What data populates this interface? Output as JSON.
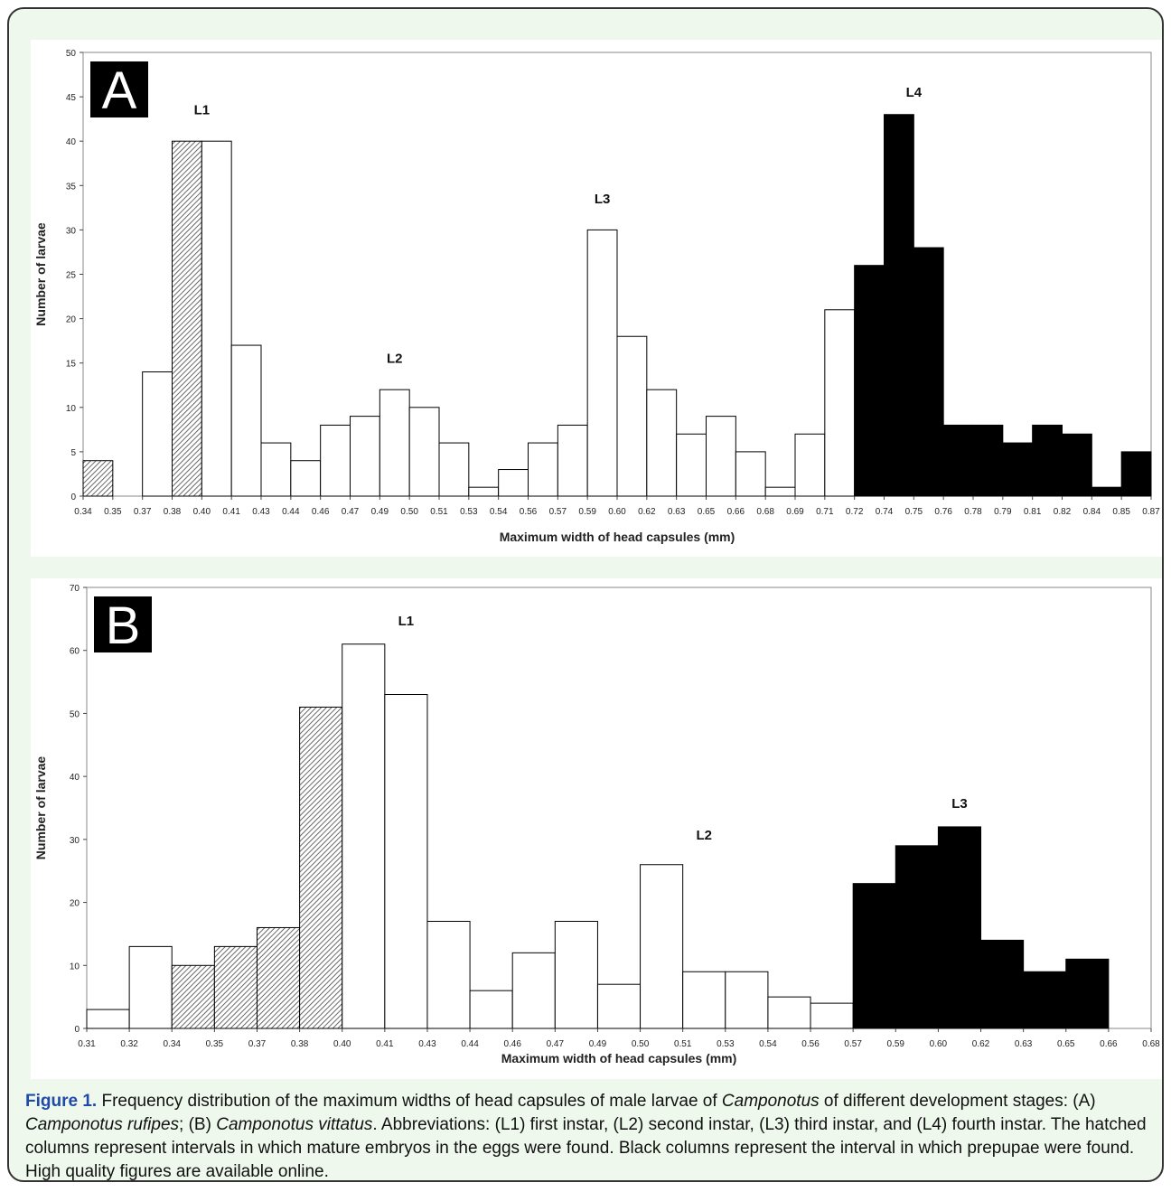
{
  "chart_data": [
    {
      "type": "bar",
      "panel_label": "A",
      "xlabel": "Maximum width of head capsules (mm)",
      "ylabel": "Number of larvae",
      "ylim": [
        0,
        50
      ],
      "y_ticks": [
        0,
        5,
        10,
        15,
        20,
        25,
        30,
        35,
        40,
        45,
        50
      ],
      "x_tick_labels": [
        "0.34",
        "0.35",
        "0.37",
        "0.38",
        "0.40",
        "0.41",
        "0.43",
        "0.44",
        "0.46",
        "0.47",
        "0.49",
        "0.50",
        "0.51",
        "0.53",
        "0.54",
        "0.56",
        "0.57",
        "0.59",
        "0.60",
        "0.62",
        "0.63",
        "0.65",
        "0.66",
        "0.68",
        "0.69",
        "0.71",
        "0.72",
        "0.74",
        "0.75",
        "0.76",
        "0.78",
        "0.79",
        "0.81",
        "0.82",
        "0.84",
        "0.85",
        "0.87"
      ],
      "values": [
        4,
        0,
        14,
        40,
        40,
        17,
        6,
        4,
        8,
        9,
        12,
        10,
        6,
        1,
        3,
        6,
        8,
        30,
        18,
        12,
        7,
        9,
        5,
        1,
        7,
        21,
        26,
        43,
        28,
        8,
        8,
        6,
        8,
        7,
        1,
        5
      ],
      "fills": [
        "hatched",
        "none",
        "white",
        "hatched",
        "white",
        "white",
        "white",
        "white",
        "white",
        "white",
        "white",
        "white",
        "white",
        "white",
        "white",
        "white",
        "white",
        "white",
        "white",
        "white",
        "white",
        "white",
        "white",
        "white",
        "white",
        "white",
        "black",
        "black",
        "black",
        "black",
        "black",
        "black",
        "black",
        "black",
        "black",
        "black"
      ],
      "stage_labels": [
        {
          "text": "L1",
          "bar": 3.5,
          "y": 43
        },
        {
          "text": "L2",
          "bar": 10,
          "y": 15
        },
        {
          "text": "L3",
          "bar": 17,
          "y": 33
        },
        {
          "text": "L4",
          "bar": 27.5,
          "y": 45
        }
      ]
    },
    {
      "type": "bar",
      "panel_label": "B",
      "xlabel": "Maximum width of head capsules (mm)",
      "ylabel": "Number of larvae",
      "ylim": [
        0,
        70
      ],
      "y_ticks": [
        0,
        10,
        20,
        30,
        40,
        50,
        60,
        70
      ],
      "x_tick_labels": [
        "0.31",
        "0.32",
        "0.34",
        "0.35",
        "0.37",
        "0.38",
        "0.40",
        "0.41",
        "0.43",
        "0.44",
        "0.46",
        "0.47",
        "0.49",
        "0.50",
        "0.51",
        "0.53",
        "0.54",
        "0.56",
        "0.57",
        "0.59",
        "0.60",
        "0.62",
        "0.63",
        "0.65",
        "0.66",
        "0.68"
      ],
      "values": [
        3,
        13,
        10,
        13,
        16,
        51,
        61,
        53,
        17,
        6,
        12,
        17,
        7,
        26,
        9,
        9,
        5,
        4,
        23,
        29,
        32,
        14,
        9,
        11
      ],
      "fills": [
        "white",
        "white",
        "hatched",
        "hatched",
        "hatched",
        "hatched",
        "white",
        "white",
        "white",
        "white",
        "white",
        "white",
        "white",
        "white",
        "white",
        "white",
        "white",
        "white",
        "black",
        "black",
        "black",
        "black",
        "black",
        "black"
      ],
      "stage_labels": [
        {
          "text": "L1",
          "bar": 7,
          "y": 64
        },
        {
          "text": "L2",
          "bar": 14,
          "y": 30
        },
        {
          "text": "L3",
          "bar": 20,
          "y": 35
        }
      ]
    }
  ],
  "caption": {
    "figure_label": "Figure 1.",
    "text_1": " Frequency distribution of the maximum widths of head capsules of male larvae of ",
    "italic_1": "Camponotus",
    "text_2": " of different development stages: (A) ",
    "italic_2": "Camponotus rufipes",
    "text_3": "; (B) ",
    "italic_3": "Camponotus vittatus",
    "text_4": ". Abbreviations: (L1) first instar, (L2) second instar, (L3) third instar, and (L4) fourth instar. The hatched columns represent intervals in which mature embryos in the eggs were found. Black columns represent the interval in which prepupae were found. High quality figures are available online."
  }
}
